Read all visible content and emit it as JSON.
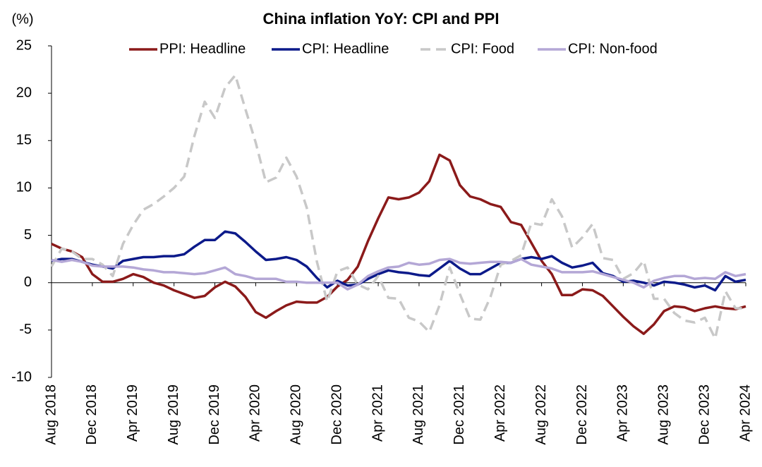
{
  "chart_data": {
    "type": "line",
    "title": "China inflation YoY: CPI and PPI",
    "y_label": "(%)",
    "categories": [
      "Aug 2018",
      null,
      null,
      null,
      "Dec 2018",
      null,
      null,
      null,
      "Apr 2019",
      null,
      null,
      null,
      "Aug 2019",
      null,
      null,
      null,
      "Dec 2019",
      null,
      null,
      null,
      "Apr 2020",
      null,
      null,
      null,
      "Aug 2020",
      null,
      null,
      null,
      "Dec 2020",
      null,
      null,
      null,
      "Apr 2021",
      null,
      null,
      null,
      "Aug 2021",
      null,
      null,
      null,
      "Dec 2021",
      null,
      null,
      null,
      "Apr 2022",
      null,
      null,
      null,
      "Aug 2022",
      null,
      null,
      null,
      "Dec 2022",
      null,
      null,
      null,
      "Apr 2023",
      null,
      null,
      null,
      "Aug 2023",
      null,
      null,
      null,
      "Dec 2023",
      null,
      null,
      null,
      "Apr 2024"
    ],
    "series": [
      {
        "name": "PPI: Headline",
        "color": "#8b1a1a",
        "dash": false,
        "values": [
          4.1,
          3.6,
          3.3,
          2.7,
          0.9,
          0.1,
          0.1,
          0.4,
          0.9,
          0.6,
          0.0,
          -0.3,
          -0.8,
          -1.2,
          -1.6,
          -1.4,
          -0.5,
          0.1,
          -0.4,
          -1.5,
          -3.1,
          -3.7,
          -3.0,
          -2.4,
          -2.0,
          -2.1,
          -2.1,
          -1.5,
          -0.4,
          0.3,
          1.7,
          4.4,
          6.8,
          9.0,
          8.8,
          9.0,
          9.5,
          10.7,
          13.5,
          12.9,
          10.3,
          9.1,
          8.8,
          8.3,
          8.0,
          6.4,
          6.1,
          4.2,
          2.3,
          0.9,
          -1.3,
          -1.3,
          -0.7,
          -0.8,
          -1.4,
          -2.5,
          -3.6,
          -4.6,
          -5.4,
          -4.4,
          -3.0,
          -2.5,
          -2.6,
          -3.0,
          -2.7,
          -2.5,
          -2.7,
          -2.8,
          -2.5
        ]
      },
      {
        "name": "CPI: Headline",
        "color": "#0c1a8a",
        "dash": false,
        "values": [
          2.3,
          2.5,
          2.5,
          2.2,
          1.9,
          1.7,
          1.5,
          2.3,
          2.5,
          2.7,
          2.7,
          2.8,
          2.8,
          3.0,
          3.8,
          4.5,
          4.5,
          5.4,
          5.2,
          4.3,
          3.3,
          2.4,
          2.5,
          2.7,
          2.4,
          1.7,
          0.5,
          -0.5,
          0.2,
          -0.3,
          -0.2,
          0.4,
          0.9,
          1.3,
          1.1,
          1.0,
          0.8,
          0.7,
          1.5,
          2.3,
          1.5,
          0.9,
          0.9,
          1.5,
          2.1,
          2.1,
          2.5,
          2.7,
          2.5,
          2.8,
          2.1,
          1.6,
          1.8,
          2.1,
          1.0,
          0.7,
          0.1,
          0.2,
          0.0,
          -0.3,
          0.1,
          0.0,
          -0.2,
          -0.5,
          -0.3,
          -0.8,
          0.7,
          0.1,
          0.3
        ]
      },
      {
        "name": "CPI: Food",
        "color": "#c8c8c8",
        "dash": true,
        "values": [
          1.7,
          3.6,
          3.3,
          2.5,
          2.5,
          1.9,
          0.7,
          4.1,
          6.1,
          7.7,
          8.3,
          9.1,
          10.0,
          11.2,
          15.5,
          19.1,
          17.4,
          20.6,
          21.9,
          18.3,
          14.8,
          10.6,
          11.1,
          13.2,
          11.2,
          7.9,
          2.2,
          -2.0,
          1.2,
          1.6,
          -0.2,
          -0.7,
          0.7,
          -1.6,
          -1.7,
          -3.7,
          -4.1,
          -5.2,
          -2.4,
          1.6,
          -1.2,
          -3.8,
          -3.9,
          -1.5,
          1.9,
          2.3,
          2.9,
          6.3,
          6.1,
          8.8,
          7.0,
          3.7,
          4.8,
          6.2,
          2.6,
          2.4,
          0.4,
          1.0,
          2.3,
          -1.7,
          -1.7,
          -3.2,
          -4.0,
          -4.2,
          -3.7,
          -5.9,
          -0.9,
          -2.7,
          -2.7
        ]
      },
      {
        "name": "CPI: Non-food",
        "color": "#b4a7d6",
        "dash": false,
        "values": [
          2.4,
          2.2,
          2.4,
          2.2,
          1.8,
          1.7,
          1.7,
          1.7,
          1.6,
          1.4,
          1.3,
          1.1,
          1.1,
          1.0,
          0.9,
          1.0,
          1.3,
          1.6,
          0.9,
          0.7,
          0.4,
          0.4,
          0.4,
          0.1,
          0.1,
          0.0,
          0.0,
          0.0,
          0.0,
          -0.7,
          -0.2,
          0.7,
          1.2,
          1.6,
          1.7,
          2.1,
          1.9,
          2.0,
          2.4,
          2.5,
          2.1,
          2.0,
          2.1,
          2.2,
          2.2,
          2.1,
          2.5,
          1.9,
          1.7,
          1.5,
          1.1,
          1.1,
          1.1,
          1.2,
          0.9,
          0.6,
          0.3,
          0.0,
          -0.5,
          0.2,
          0.5,
          0.7,
          0.7,
          0.4,
          0.5,
          0.4,
          1.1,
          0.7,
          0.9
        ]
      }
    ],
    "ylim": [
      -10,
      25
    ],
    "yticks": [
      -10,
      -5,
      0,
      5,
      10,
      15,
      20,
      25
    ],
    "negative_tick_color": "#ff0000",
    "grid": false
  }
}
